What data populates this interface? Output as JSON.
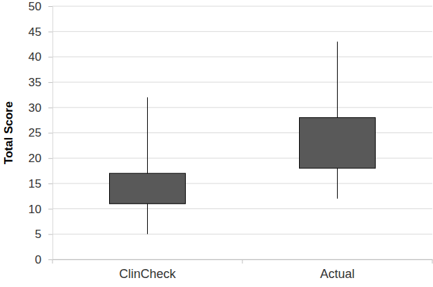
{
  "chart_data": {
    "type": "box",
    "y_label": "Total Score",
    "categories": [
      "ClinCheck",
      "Actual"
    ],
    "min": [
      5,
      12
    ],
    "q1": [
      11,
      18
    ],
    "q3": [
      17,
      28
    ],
    "max": [
      32,
      43
    ],
    "color": "#595959",
    "ylim": [
      0,
      50
    ],
    "yticks": [
      0,
      5,
      10,
      15,
      20,
      25,
      30,
      35,
      40,
      45,
      50
    ],
    "grid": true
  }
}
